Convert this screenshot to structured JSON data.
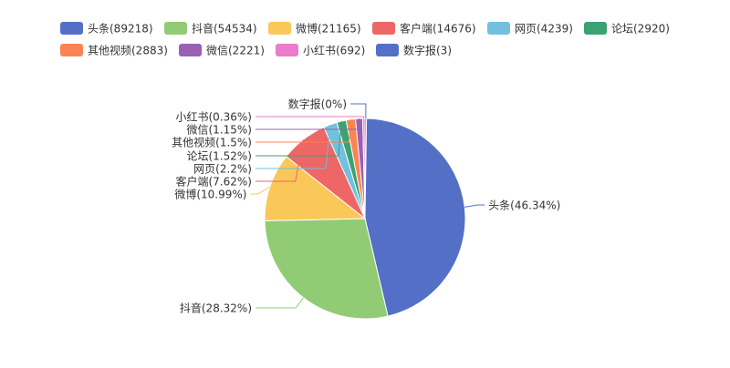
{
  "chart_data": {
    "type": "pie",
    "title": "",
    "legend_position": "top",
    "label_format": "{name}({percent}%)",
    "legend_format": "{name}({value})",
    "series": [
      {
        "name": "头条",
        "value": 89218,
        "percent": "46.34",
        "color": "#5470c6"
      },
      {
        "name": "抖音",
        "value": 54534,
        "percent": "28.32",
        "color": "#91cc75"
      },
      {
        "name": "微博",
        "value": 21165,
        "percent": "10.99",
        "color": "#fac858"
      },
      {
        "name": "客户端",
        "value": 14676,
        "percent": "7.62",
        "color": "#ee6666"
      },
      {
        "name": "网页",
        "value": 4239,
        "percent": "2.2",
        "color": "#73c0de"
      },
      {
        "name": "论坛",
        "value": 2920,
        "percent": "1.52",
        "color": "#3ba272"
      },
      {
        "name": "其他视频",
        "value": 2883,
        "percent": "1.5",
        "color": "#fc8452"
      },
      {
        "name": "微信",
        "value": 2221,
        "percent": "1.15",
        "color": "#9a60b4"
      },
      {
        "name": "小红书",
        "value": 692,
        "percent": "0.36",
        "color": "#ea7ccc"
      },
      {
        "name": "数字报",
        "value": 3,
        "percent": "0",
        "color": "#5470c6"
      }
    ]
  }
}
